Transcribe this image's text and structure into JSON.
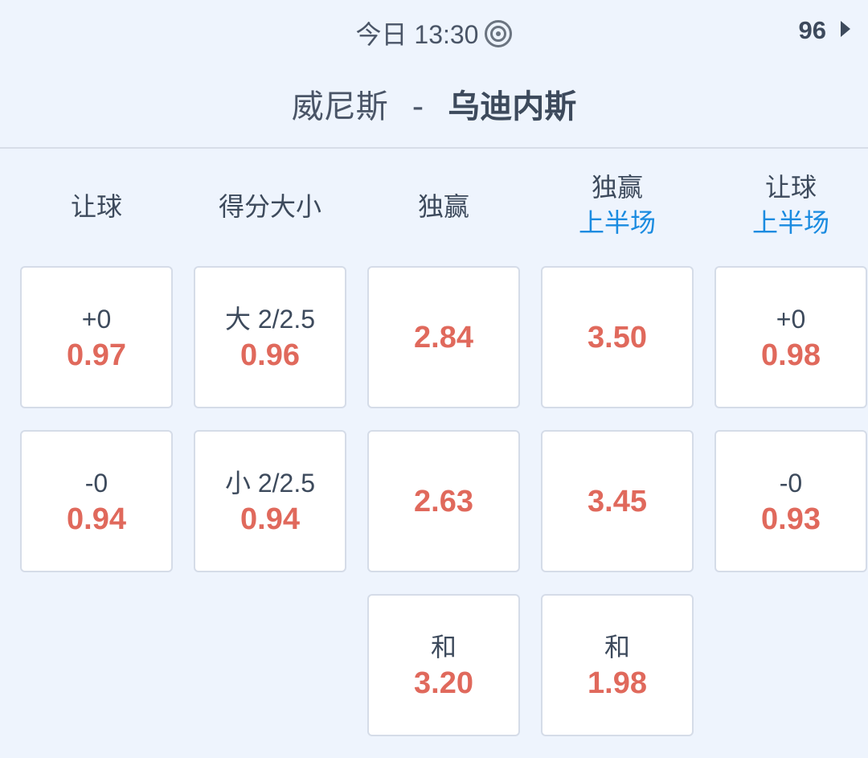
{
  "header": {
    "time": "今日 13:30",
    "icon": "target-icon",
    "count": "96",
    "home": "威尼斯",
    "separator": "-",
    "away": "乌迪内斯"
  },
  "columns": [
    {
      "title": "让球",
      "sub": ""
    },
    {
      "title": "得分大小",
      "sub": ""
    },
    {
      "title": "独赢",
      "sub": ""
    },
    {
      "title": "独赢",
      "sub": "上半场"
    },
    {
      "title": "让球",
      "sub": "上半场"
    }
  ],
  "cells": [
    [
      {
        "label": "+0",
        "odds": "0.97"
      },
      {
        "label": "-0",
        "odds": "0.94"
      }
    ],
    [
      {
        "label": "大 2/2.5",
        "odds": "0.96"
      },
      {
        "label": "小 2/2.5",
        "odds": "0.94"
      }
    ],
    [
      {
        "label": "",
        "odds": "2.84"
      },
      {
        "label": "",
        "odds": "2.63"
      },
      {
        "label": "和",
        "odds": "3.20"
      }
    ],
    [
      {
        "label": "",
        "odds": "3.50"
      },
      {
        "label": "",
        "odds": "3.45"
      },
      {
        "label": "和",
        "odds": "1.98"
      }
    ],
    [
      {
        "label": "+0",
        "odds": "0.98"
      },
      {
        "label": "-0",
        "odds": "0.93"
      }
    ]
  ],
  "colors": {
    "odds": "#e0695c",
    "accent": "#1a8be0",
    "background": "#eef4fd"
  }
}
